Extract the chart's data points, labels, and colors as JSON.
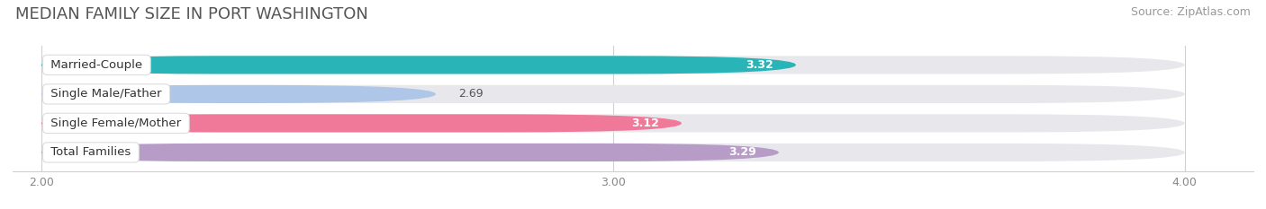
{
  "title": "MEDIAN FAMILY SIZE IN PORT WASHINGTON",
  "source": "Source: ZipAtlas.com",
  "categories": [
    "Married-Couple",
    "Single Male/Father",
    "Single Female/Mother",
    "Total Families"
  ],
  "values": [
    3.32,
    2.69,
    3.12,
    3.29
  ],
  "bar_colors": [
    "#29b5b8",
    "#aec6e8",
    "#f07898",
    "#b89cc8"
  ],
  "track_color": "#e8e8ec",
  "x_min": 2.0,
  "x_max": 4.0,
  "x_ticks": [
    2.0,
    3.0,
    4.0
  ],
  "x_tick_labels": [
    "2.00",
    "3.00",
    "4.00"
  ],
  "bar_height": 0.62,
  "background_color": "#ffffff",
  "plot_bg_color": "#ffffff",
  "title_fontsize": 13,
  "source_fontsize": 9,
  "label_fontsize": 9.5,
  "value_fontsize": 9
}
